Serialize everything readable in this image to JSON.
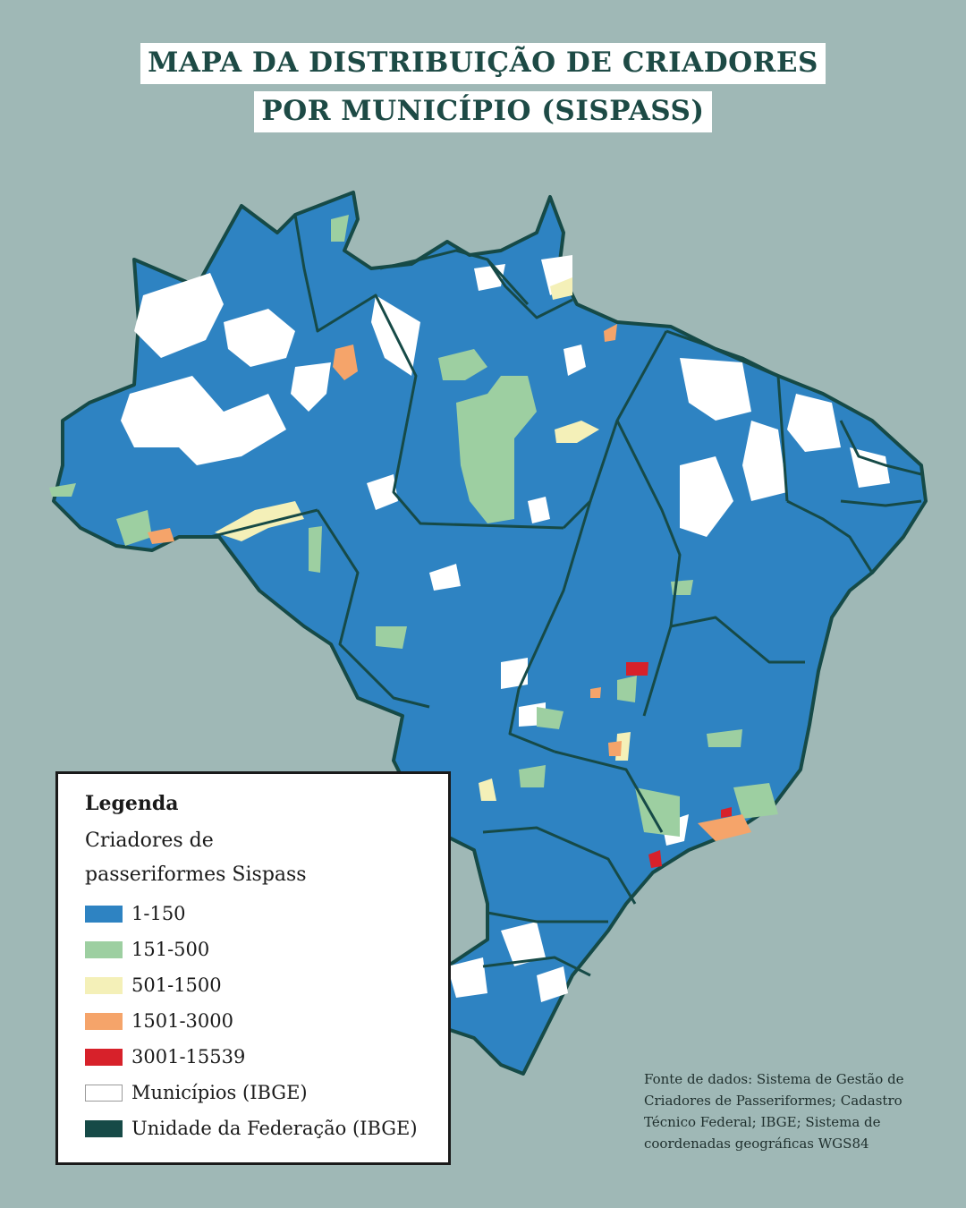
{
  "title": {
    "line1": "MAPA DA DISTRIBUIÇÃO DE CRIADORES",
    "line2": "POR MUNICÍPIO (SISPASS)"
  },
  "colors": {
    "background": "#9fb8b6",
    "class_1_150": "#2e83c2",
    "class_151_500": "#9dcfa1",
    "class_501_1500": "#f4f0b8",
    "class_1501_3000": "#f5a46a",
    "class_3001_15539": "#d7212a",
    "municipios": "#ffffff",
    "uf_border": "#164a47"
  },
  "legend": {
    "title": "Legenda",
    "subtitle": "Criadores de passeriformes Sispass",
    "items": [
      {
        "label": "1-150",
        "color": "#2e83c2"
      },
      {
        "label": "151-500",
        "color": "#9dcfa1"
      },
      {
        "label": "501-1500",
        "color": "#f4f0b8"
      },
      {
        "label": "1501-3000",
        "color": "#f5a46a"
      },
      {
        "label": "3001-15539",
        "color": "#d7212a"
      },
      {
        "label": "Municípios (IBGE)",
        "color": "#ffffff"
      },
      {
        "label": "Unidade da Federação (IBGE)",
        "color": "#164a47"
      }
    ]
  },
  "source": "Fonte de dados: Sistema de Gestão de Criadores de Passeriformes; Cadastro Técnico Federal; IBGE; Sistema de coordenadas geográficas WGS84"
}
